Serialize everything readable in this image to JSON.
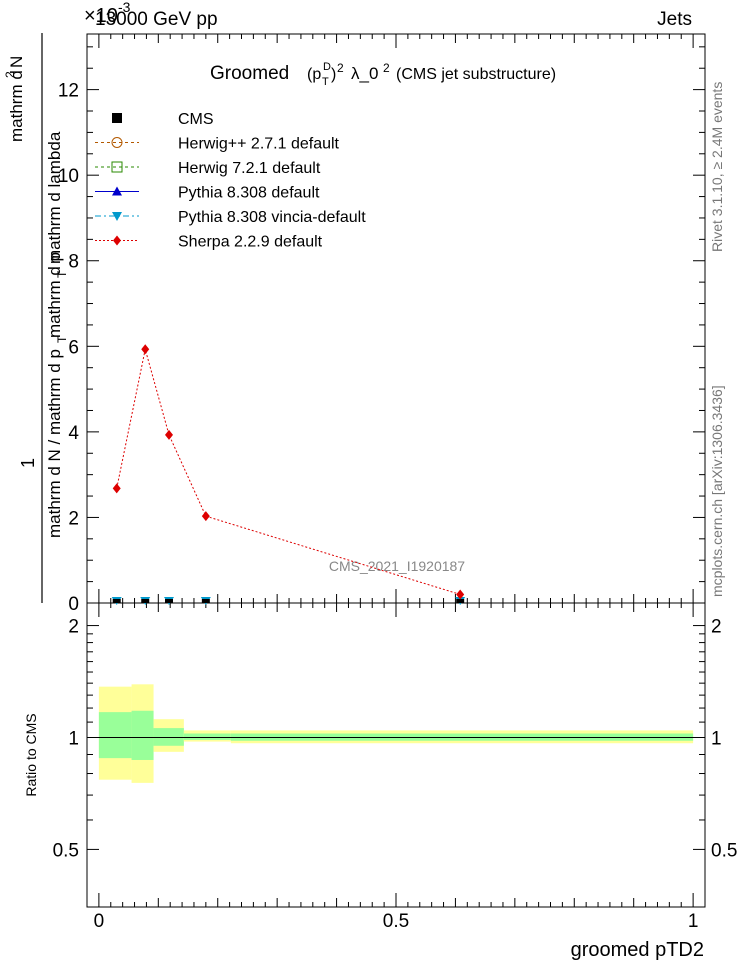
{
  "header": {
    "energy": "13000 GeV pp",
    "category": "Jets",
    "exponent": "×10",
    "exponent_power": "-3"
  },
  "side_labels": {
    "rivet": "Rivet 3.1.10, ≥ 2.4M events",
    "mcplots": "mcplots.cern.ch [arXiv:1306.3436]"
  },
  "watermark": "CMS_2021_I1920187",
  "colors": {
    "cms": "#000000",
    "herwigpp": "#b35900",
    "herwig7": "#2a8a00",
    "pythia": "#0000cc",
    "vincia": "#0099cc",
    "sherpa": "#dd0000",
    "band_inner": "#99ff99",
    "band_outer": "#ffff99"
  },
  "chart_data": [
    {
      "type": "line",
      "title": "Groomed (p_T^D)^2 λ_0^2 (CMS jet substructure)",
      "title_main": "Groomed",
      "title_pt": "(p",
      "title_pt_sub": "T",
      "title_pt_sup": "D",
      "title_pt_close": ")",
      "title_sq": "2",
      "title_lambda": "λ_0",
      "title_tail": "(CMS jet substructure)",
      "ylabel": "1 / (mathrm d N / mathrm d p_T) · mathrm d²N / (mathrm d p_T mathrm d lambda)",
      "ylabel_num_main": "1",
      "ylabel_den_main": "mathrm d N / mathrm d p",
      "ylabel_den_sub": "T",
      "ylabel_num_right": "mathrm d",
      "ylabel_num_right_sup": "2",
      "ylabel_num_right_tail": "N",
      "ylabel_den_right_a": "mathrm d p",
      "ylabel_den_right_sub": "T",
      "ylabel_den_right_b": "mathrm d lambda",
      "xlim": [
        -0.02,
        1.02
      ],
      "ylim": [
        0,
        13.3
      ],
      "y_scale_note": "×10^-3",
      "yticks": [
        0,
        2,
        4,
        6,
        8,
        10,
        12
      ],
      "ytick_labels": [
        "0",
        "2",
        "4",
        "6",
        "8",
        "10",
        "12"
      ],
      "legend": [
        {
          "label": "CMS",
          "key": "cms"
        },
        {
          "label": "Herwig++ 2.7.1 default",
          "key": "herwigpp"
        },
        {
          "label": "Herwig 7.2.1 default",
          "key": "herwig7"
        },
        {
          "label": "Pythia 8.308 default",
          "key": "pythia"
        },
        {
          "label": "Pythia 8.308 vincia-default",
          "key": "vincia"
        },
        {
          "label": "Sherpa 2.2.9 default",
          "key": "sherpa"
        }
      ],
      "series": [
        {
          "name": "CMS",
          "x": [
            0.03,
            0.078,
            0.118,
            0.18,
            0.608
          ],
          "y": [
            0.0,
            0.0,
            0.0,
            0.0,
            0.0
          ]
        },
        {
          "name": "Pythia 8.308 vincia-default",
          "x": [
            0.03,
            0.078,
            0.118,
            0.18,
            0.608
          ],
          "y": [
            0.0,
            0.0,
            0.0,
            0.0,
            0.0
          ]
        },
        {
          "name": "Sherpa 2.2.9 default",
          "x": [
            0.03,
            0.078,
            0.118,
            0.18,
            0.608
          ],
          "y": [
            2.68,
            5.93,
            3.93,
            2.03,
            0.2
          ]
        }
      ]
    },
    {
      "type": "area",
      "ylabel": "Ratio to CMS",
      "xlabel": "groomed pTD2",
      "xlim": [
        -0.02,
        1.02
      ],
      "ylim": [
        0.35,
        2.3
      ],
      "yticks": [
        0.5,
        1,
        2
      ],
      "ytick_labels": [
        "0.5",
        "1",
        "2"
      ],
      "xticks": [
        0,
        0.5,
        1
      ],
      "xtick_labels": [
        "0",
        "0.5",
        "1"
      ],
      "bins": [
        {
          "x0": 0.0,
          "x1": 0.055,
          "inner": [
            0.88,
            1.17
          ],
          "outer": [
            0.77,
            1.37
          ]
        },
        {
          "x0": 0.055,
          "x1": 0.092,
          "inner": [
            0.87,
            1.18
          ],
          "outer": [
            0.755,
            1.39
          ]
        },
        {
          "x0": 0.092,
          "x1": 0.143,
          "inner": [
            0.95,
            1.06
          ],
          "outer": [
            0.915,
            1.12
          ]
        },
        {
          "x0": 0.143,
          "x1": 0.222,
          "inner": [
            0.985,
            1.025
          ],
          "outer": [
            0.975,
            1.045
          ]
        },
        {
          "x0": 0.222,
          "x1": 1.0,
          "inner": [
            0.98,
            1.025
          ],
          "outer": [
            0.965,
            1.045
          ]
        }
      ]
    }
  ]
}
